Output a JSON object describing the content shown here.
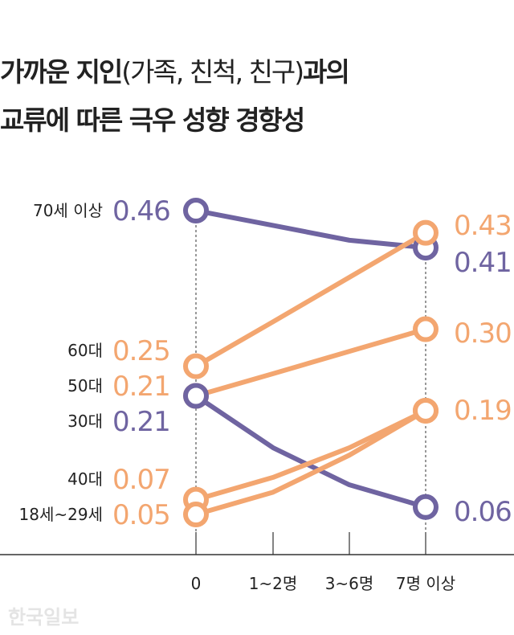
{
  "chart_data": {
    "type": "line",
    "title_bold_1": "가까운 지인",
    "title_light": "(가족, 친척, 친구)",
    "title_bold_2": "과의",
    "title_line2": "교류에 따른 극우 성향 경향성",
    "categories": [
      "0",
      "1~2명",
      "3~6명",
      "7명 이상"
    ],
    "ylim": [
      0,
      0.5
    ],
    "colors": {
      "purple": "#6f64a1",
      "orange": "#f3a670"
    },
    "series": [
      {
        "name": "70세 이상",
        "color": "purple",
        "values": [
          0.46,
          0.44,
          0.42,
          0.41
        ],
        "start_label": "0.46",
        "end_label": "0.41"
      },
      {
        "name": "60대",
        "color": "orange",
        "values": [
          0.25,
          0.31,
          0.37,
          0.43
        ],
        "start_label": "0.25",
        "end_label": "0.43"
      },
      {
        "name": "50대",
        "color": "orange",
        "values": [
          0.21,
          0.24,
          0.27,
          0.3
        ],
        "start_label": "0.21",
        "end_label": "0.30"
      },
      {
        "name": "30대",
        "color": "purple",
        "values": [
          0.21,
          0.14,
          0.09,
          0.06
        ],
        "start_label": "0.21",
        "end_label": "0.06"
      },
      {
        "name": "40대",
        "color": "orange",
        "values": [
          0.07,
          0.1,
          0.14,
          0.19
        ],
        "start_label": "0.07",
        "end_label": "0.19"
      },
      {
        "name": "18세~29세",
        "color": "orange",
        "values": [
          0.05,
          0.08,
          0.13,
          0.19
        ],
        "start_label": "0.05",
        "end_label": ""
      }
    ]
  },
  "watermark": "한국일보"
}
